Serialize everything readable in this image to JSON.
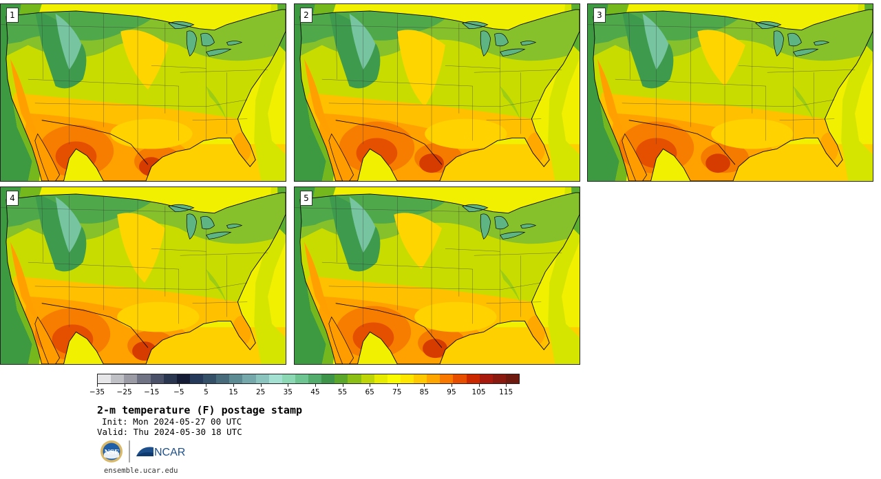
{
  "panels": [
    {
      "label": "1",
      "variant": 0
    },
    {
      "label": "2",
      "variant": 1
    },
    {
      "label": "3",
      "variant": 2
    },
    {
      "label": "4",
      "variant": 3
    },
    {
      "label": "5",
      "variant": 4
    }
  ],
  "colorbar": {
    "min": -35,
    "max": 120,
    "step": 5,
    "colors": [
      "#e6e6e8",
      "#bfc0c6",
      "#9a9ba4",
      "#707383",
      "#4a5067",
      "#2a3550",
      "#141d35",
      "#253a5a",
      "#345069",
      "#486b7c",
      "#5c8b93",
      "#74a8aa",
      "#8bc3bf",
      "#a5e1d2",
      "#8cd8b5",
      "#6fc592",
      "#54ac6c",
      "#3e9448",
      "#5aa72c",
      "#8cbf16",
      "#bed507",
      "#e6eb00",
      "#fafa00",
      "#ffe600",
      "#ffc800",
      "#ffa500",
      "#f87800",
      "#e84e00",
      "#cc2800",
      "#a81a0d",
      "#8a1a10",
      "#6e1a0e"
    ],
    "tick_labels": [
      "−35",
      "−25",
      "−15",
      "−5",
      "5",
      "15",
      "25",
      "35",
      "45",
      "55",
      "65",
      "75",
      "85",
      "95",
      "105",
      "115"
    ]
  },
  "title": "2-m temperature (F) postage stamp",
  "init": "Init: Mon 2024-05-27 00 UTC",
  "valid": "Valid: Thu 2024-05-30 18 UTC",
  "logos": {
    "nsf": "NSF",
    "ncar": "NCAR"
  },
  "website": "ensemble.ucar.edu"
}
